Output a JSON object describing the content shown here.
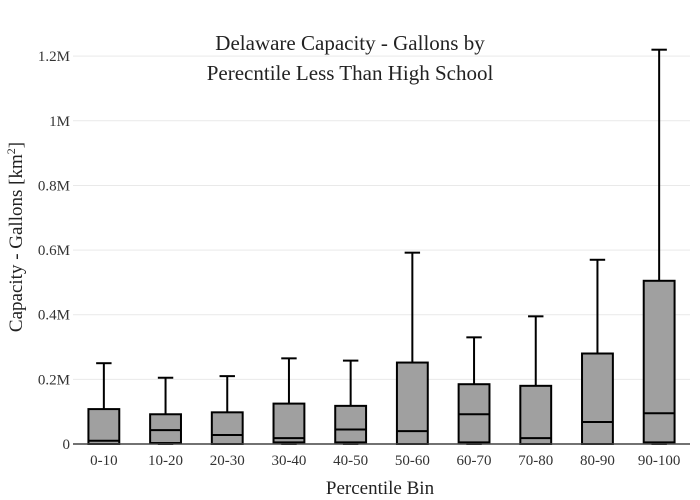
{
  "chart_data": {
    "type": "box",
    "title_lines": [
      "Delaware Capacity - Gallons by",
      "Perecntile Less Than High School"
    ],
    "xlabel": "Percentile Bin",
    "ylabel": "Capacity - Gallons  [km",
    "ylabel_sup": "2",
    "ylabel_close": "]",
    "ylim": [
      0,
      1250000
    ],
    "yticks": [
      0,
      200000,
      400000,
      600000,
      800000,
      1000000,
      1200000
    ],
    "ytick_labels": [
      "0",
      "0.2M",
      "0.4M",
      "0.6M",
      "0.8M",
      "1M",
      "1.2M"
    ],
    "grid": true,
    "box_color": "#a0a0a0",
    "line_color": "#000000",
    "boxes": [
      {
        "category": "0-10",
        "min": 0,
        "q1": 0,
        "median": 10000,
        "q3": 108000,
        "max": 250000
      },
      {
        "category": "10-20",
        "min": 0,
        "q1": 3000,
        "median": 43000,
        "q3": 92000,
        "max": 205000
      },
      {
        "category": "20-30",
        "min": 0,
        "q1": 0,
        "median": 28000,
        "q3": 98000,
        "max": 210000
      },
      {
        "category": "30-40",
        "min": 0,
        "q1": 5000,
        "median": 18000,
        "q3": 125000,
        "max": 265000
      },
      {
        "category": "40-50",
        "min": 0,
        "q1": 5000,
        "median": 45000,
        "q3": 118000,
        "max": 258000
      },
      {
        "category": "50-60",
        "min": 0,
        "q1": 0,
        "median": 40000,
        "q3": 252000,
        "max": 592000
      },
      {
        "category": "60-70",
        "min": 0,
        "q1": 5000,
        "median": 92000,
        "q3": 185000,
        "max": 330000
      },
      {
        "category": "70-80",
        "min": 0,
        "q1": 0,
        "median": 18000,
        "q3": 180000,
        "max": 395000
      },
      {
        "category": "80-90",
        "min": 0,
        "q1": 0,
        "median": 68000,
        "q3": 280000,
        "max": 570000
      },
      {
        "category": "90-100",
        "min": 0,
        "q1": 5000,
        "median": 95000,
        "q3": 505000,
        "max": 1220000
      }
    ]
  }
}
